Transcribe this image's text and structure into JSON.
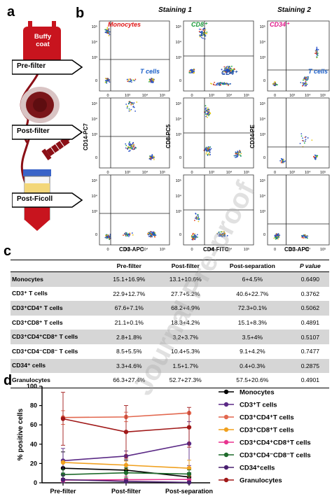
{
  "panels": {
    "a": "a",
    "b": "b",
    "c": "c",
    "d": "d"
  },
  "panel_a": {
    "bag_label_line1": "Buffy",
    "bag_label_line2": "coat",
    "steps": [
      "Pre-filter",
      "Post-filter",
      "Post-Ficoll"
    ]
  },
  "panel_b": {
    "staining1": "Staining 1",
    "staining2": "Staining 2",
    "gate_labels": {
      "monocytes": "Monocytes",
      "tcells1": "T cells",
      "cd8": "CD8⁺",
      "cd4": "CD4⁺",
      "cd34": "CD34⁺",
      "tcells2": "T cells"
    },
    "y_axis_labels": [
      "CD14-PC7",
      "CD8-PC5",
      "CD34-PE"
    ],
    "x_axis_labels": [
      "CD3-APC",
      "CD4-FITC",
      "CD3-APC"
    ],
    "tick_labels_y": [
      "10⁵",
      "10⁴",
      "10³",
      "0"
    ],
    "tick_labels_x": [
      "0",
      "10³",
      "10⁴",
      "10⁵"
    ]
  },
  "panel_c": {
    "headers": [
      "",
      "Pre-filter",
      "Post-filter",
      "Post-separation",
      "P value"
    ],
    "rows": [
      [
        "Monocytes",
        "15.1+16.9%",
        "13.1+10.6%",
        "6+4.5%",
        "0.6490"
      ],
      [
        "CD3⁺ T cells",
        "22.9+12.7%",
        "27.7+5.2%",
        "40.6+22.7%",
        "0.3762"
      ],
      [
        "CD3⁺CD4⁺ T cells",
        "67.6+7.1%",
        "68.2+4.9%",
        "72.3+0.1%",
        "0.5062"
      ],
      [
        "CD3⁺CD8⁺ T cells",
        "21.1+0.1%",
        "18.3+4.2%",
        "15.1+8.3%",
        "0.4891"
      ],
      [
        "CD3⁺CD4⁺CD8⁺ T cells",
        "2.8+1.8%",
        "3.2+3.7%",
        "3.5+4%",
        "0.5107"
      ],
      [
        "CD3⁺CD4⁻CD8⁻ T cells",
        "8.5+5.5%",
        "10.4+5.3%",
        "9.1+4.2%",
        "0.7477"
      ],
      [
        "CD34⁺ cells",
        "3.3+4.6%",
        "1.5+1.7%",
        "0.4+0.3%",
        "0.2875"
      ],
      [
        "Granulocytes",
        "66.3+27.4%",
        "52.7+27.3%",
        "57.5+20.6%",
        "0.4901"
      ]
    ]
  },
  "chart_data": {
    "type": "line",
    "categories": [
      "Pre-filter",
      "Post-filter",
      "Post-separation"
    ],
    "ylabel": "% positive cells",
    "ylim": [
      0,
      100
    ],
    "yticks": [
      "0",
      "20",
      "40",
      "60",
      "80",
      "100"
    ],
    "series": [
      {
        "name": "Monocytes",
        "color": "#000000",
        "values": [
          15.1,
          13.1,
          6
        ],
        "errors": [
          16.9,
          10.6,
          4.5
        ]
      },
      {
        "name": "CD3⁺T cells",
        "color": "#5b2a86",
        "values": [
          22.9,
          27.7,
          40.6
        ],
        "errors": [
          12.7,
          5.2,
          22.7
        ]
      },
      {
        "name": "CD3⁺CD4⁺T cells",
        "color": "#e2674e",
        "values": [
          67.6,
          68.2,
          72.3
        ],
        "errors": [
          7.1,
          4.9,
          0.1
        ]
      },
      {
        "name": "CD3⁺CD8⁺T cells",
        "color": "#f0a01e",
        "values": [
          21.1,
          18.3,
          15.1
        ],
        "errors": [
          0.1,
          4.2,
          8.3
        ]
      },
      {
        "name": "CD3⁺CD4⁺CD8⁺T cells",
        "color": "#e8338f",
        "values": [
          2.8,
          3.2,
          3.5
        ],
        "errors": [
          1.8,
          3.7,
          4
        ]
      },
      {
        "name": "CD3⁺CD4⁻CD8⁻T cells",
        "color": "#1f6b2c",
        "values": [
          8.5,
          10.4,
          9.1
        ],
        "errors": [
          5.5,
          5.3,
          4.2
        ]
      },
      {
        "name": "CD34⁺cells",
        "color": "#4a2070",
        "values": [
          3.3,
          1.5,
          0.4
        ],
        "errors": [
          4.6,
          1.7,
          0.3
        ]
      },
      {
        "name": "Granulocytes",
        "color": "#a01818",
        "values": [
          66.3,
          52.7,
          57.5
        ],
        "errors": [
          27.4,
          27.3,
          20.6
        ]
      }
    ]
  },
  "watermark": "Journal Pre-proof"
}
